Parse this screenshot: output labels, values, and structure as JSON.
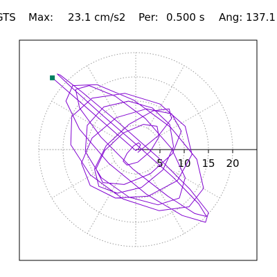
{
  "header": {
    "station": "GTS",
    "max_label": "Max:",
    "max_value": "23.1 cm/s2",
    "per_label": "Per:",
    "per_value": "0.500 s",
    "ang_label": "Ang:",
    "ang_value": "137.1"
  },
  "chart_data": {
    "type": "line",
    "title": "",
    "xlabel": "",
    "ylabel": "",
    "xlim": [
      -24,
      24
    ],
    "ylim": [
      -22,
      22
    ],
    "polar_rings": [
      5,
      10,
      15,
      20
    ],
    "polar_spokes_deg": [
      0,
      30,
      60,
      90,
      120,
      150,
      180,
      210,
      240,
      270,
      300,
      330
    ],
    "x_ticks": [
      5,
      10,
      15,
      20
    ],
    "x_tick_labels": [
      "5",
      "10",
      "15",
      "20"
    ],
    "grid": "dotted polar",
    "colors": {
      "trace": "#8000d0",
      "marker": "#008060",
      "grid": "#999999",
      "axis": "#000000"
    },
    "series": [
      {
        "color": "#8000d0",
        "x": [
          0.4,
          4.8,
          7.4,
          6.9,
          3.6,
          -1.4,
          -6.1,
          -8.5,
          -7.6,
          -3.8,
          1.2,
          5.6,
          7.8,
          7.0,
          3.4,
          -1.5,
          -6.6,
          -10.0,
          -10.4,
          -7.1,
          -1.4,
          4.6,
          9.0,
          10.2,
          7.4,
          2.0,
          -4.2,
          -9.6,
          -12.4,
          -11.6,
          -7.2,
          -0.6,
          6.6,
          12.2,
          14.6,
          13.0,
          7.8,
          0.4,
          -7.0,
          -13.0,
          -16.2,
          -15.6,
          -11.0,
          -3.6,
          4.6,
          11.2,
          15.0,
          14.4,
          9.6,
          2.2,
          -5.6,
          -11.6,
          -14.4,
          -13.0,
          -8.0,
          -0.4,
          7.2,
          12.6,
          14.0,
          11.0,
          4.8,
          -2.6,
          -9.4,
          -13.4,
          -13.2,
          -9.0,
          -2.2,
          5.0,
          10.2,
          11.6,
          8.6,
          2.6,
          -4.2,
          -9.4,
          -11.2,
          -9.0,
          -4.0,
          2.2,
          7.4,
          9.4,
          7.6,
          3.0,
          -2.4,
          -6.8,
          -8.2,
          -6.4,
          -2.6,
          1.6,
          4.4,
          4.8,
          3.0,
          0.4,
          -1.8,
          -2.6,
          -1.8,
          -0.4,
          0.6,
          1.0,
          0.6,
          0.0,
          -17.2
        ],
        "y": [
          -0.6,
          3.0,
          6.4,
          8.4,
          8.0,
          5.2,
          0.8,
          -4.0,
          -7.6,
          -9.0,
          -7.8,
          -4.2,
          0.6,
          5.2,
          8.6,
          10.0,
          8.8,
          5.0,
          -0.4,
          -5.8,
          -9.8,
          -11.4,
          -10.0,
          -5.8,
          0.2,
          6.4,
          11.0,
          13.2,
          12.4,
          8.6,
          2.6,
          -4.0,
          -9.6,
          -13.2,
          -13.8,
          -11.2,
          -5.8,
          0.8,
          7.2,
          12.6,
          15.6,
          15.4,
          11.8,
          5.6,
          -1.6,
          -8.2,
          -13.0,
          -15.0,
          -13.6,
          -9.2,
          -2.8,
          4.2,
          10.0,
          13.2,
          13.4,
          10.2,
          4.6,
          -2.0,
          -8.0,
          -11.8,
          -12.6,
          -10.2,
          -5.2,
          1.0,
          6.8,
          10.6,
          11.6,
          9.4,
          4.8,
          -1.0,
          -6.4,
          -9.6,
          -10.0,
          -7.4,
          -2.8,
          2.4,
          6.6,
          8.4,
          7.4,
          3.8,
          -0.8,
          -5.0,
          -7.2,
          -6.8,
          -4.0,
          -0.2,
          3.4,
          5.2,
          4.8,
          2.6,
          -0.4,
          -2.6,
          -3.2,
          -2.4,
          -0.8,
          0.8,
          1.4,
          1.0,
          0.2,
          -0.2,
          14.8
        ]
      }
    ],
    "start_marker": {
      "x": -17.2,
      "y": 14.8
    }
  }
}
